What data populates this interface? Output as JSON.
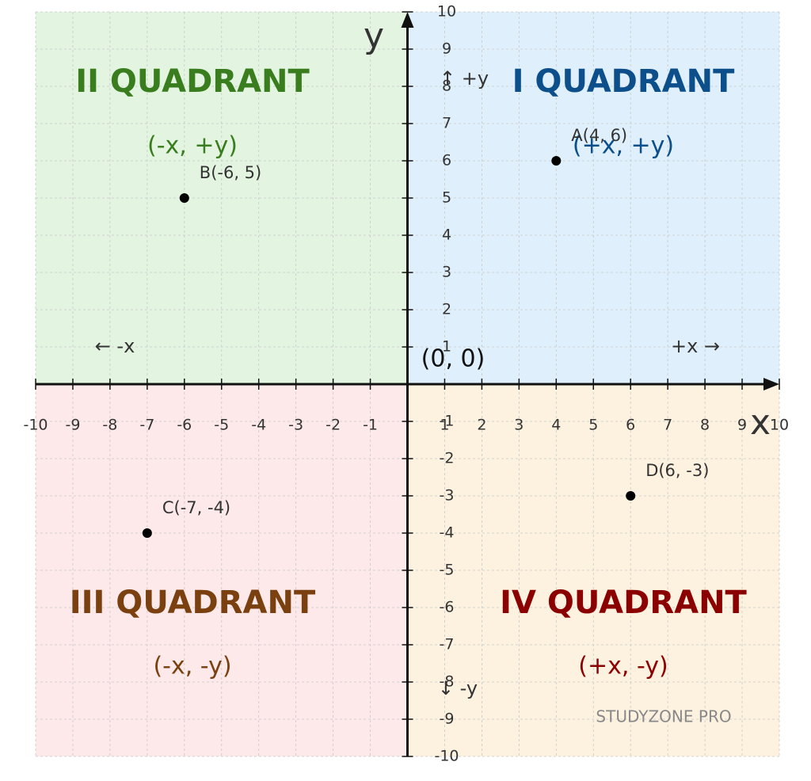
{
  "chart_data": {
    "type": "scatter",
    "x_label": "x",
    "y_label": "y",
    "xlim": [
      -10,
      10
    ],
    "ylim": [
      -10,
      10
    ],
    "xticks": [
      -10,
      -9,
      -8,
      -7,
      -6,
      -5,
      -4,
      -3,
      -2,
      -1,
      1,
      2,
      3,
      4,
      5,
      6,
      7,
      8,
      9,
      10
    ],
    "yticks": [
      -10,
      -9,
      -8,
      -7,
      -6,
      -5,
      -4,
      -3,
      -2,
      -1,
      1,
      2,
      3,
      4,
      5,
      6,
      7,
      8,
      9,
      10
    ],
    "grid": true,
    "x": [
      4,
      -6,
      -7,
      6
    ],
    "values": [
      6,
      5,
      -4,
      -3
    ],
    "point_labels": [
      "A(4, 6)",
      "B(-6, 5)",
      "C(-7, -4)",
      "D(6, -3)"
    ],
    "color": "#000000",
    "origin_label": "(0, 0)",
    "quadrants": [
      {
        "title": "I QUADRANT",
        "signs": "(+x, +y)",
        "color": "#0d4f8b",
        "fill": "#dff0fc"
      },
      {
        "title": "II QUADRANT",
        "signs": "(-x, +y)",
        "color": "#3a7d1e",
        "fill": "#e3f5e1"
      },
      {
        "title": "III QUADRANT",
        "signs": "(-x, -y)",
        "color": "#7a4010",
        "fill": "#fde9e9"
      },
      {
        "title": "IV QUADRANT",
        "signs": "(+x, -y)",
        "color": "#8b0000",
        "fill": "#fdf2e0"
      }
    ],
    "direction_labels": {
      "up": "↑ +y",
      "down": "↓ -y",
      "right": "+x →",
      "left": "← -x"
    },
    "watermark": "STUDYZONE PRO"
  }
}
